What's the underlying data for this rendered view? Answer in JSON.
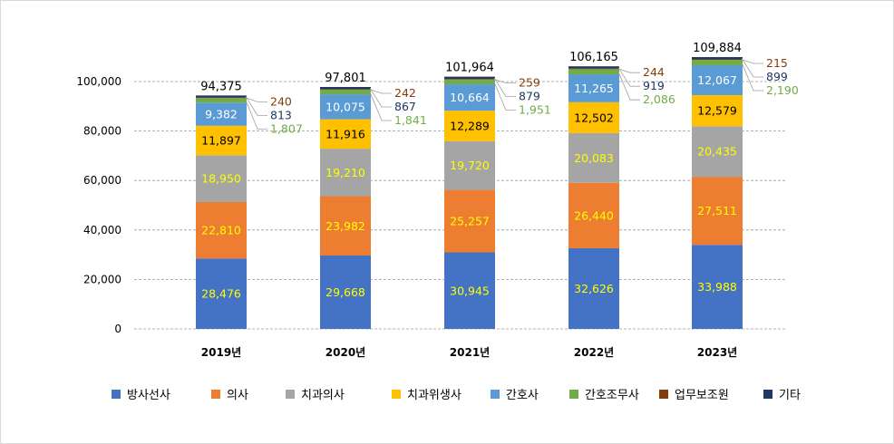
{
  "chart_data": {
    "type": "stacked-bar",
    "title": "",
    "categories": [
      "2019년",
      "2020년",
      "2021년",
      "2022년",
      "2023년"
    ],
    "ylim": [
      0,
      100000
    ],
    "yticks": [
      "0",
      "20,000",
      "40,000",
      "60,000",
      "80,000",
      "100,000"
    ],
    "ytick_values": [
      0,
      20000,
      40000,
      60000,
      80000,
      100000
    ],
    "grid": true,
    "legend_position": "bottom",
    "series": [
      {
        "name": "방사선사",
        "color": "#4472c4",
        "values": [
          28476,
          29668,
          30945,
          32626,
          33988
        ],
        "labels": [
          "28,476",
          "29,668",
          "30,945",
          "32,626",
          "33,988"
        ],
        "label_style": "inside-yellow"
      },
      {
        "name": "의사",
        "color": "#ed7d31",
        "values": [
          22810,
          23982,
          25257,
          26440,
          27511
        ],
        "labels": [
          "22,810",
          "23,982",
          "25,257",
          "26,440",
          "27,511"
        ],
        "label_style": "inside-yellow"
      },
      {
        "name": "치과의사",
        "color": "#a5a5a5",
        "values": [
          18950,
          19210,
          19720,
          20083,
          20435
        ],
        "labels": [
          "18,950",
          "19,210",
          "19,720",
          "20,083",
          "20,435"
        ],
        "label_style": "inside-yellow"
      },
      {
        "name": "치과위생사",
        "color": "#ffc000",
        "values": [
          11897,
          11916,
          12289,
          12502,
          12579
        ],
        "labels": [
          "11,897",
          "11,916",
          "12,289",
          "12,502",
          "12,579"
        ],
        "label_style": "inside-dark"
      },
      {
        "name": "간호사",
        "color": "#5b9bd5",
        "values": [
          9382,
          10075,
          10664,
          11265,
          12067
        ],
        "labels": [
          "9,382",
          "10,075",
          "10,664",
          "11,265",
          "12,067"
        ],
        "label_style": "inside-light"
      },
      {
        "name": "간호조무사",
        "color": "#70ad47",
        "values": [
          1807,
          1841,
          1951,
          2086,
          2190
        ],
        "labels": [
          "1,807",
          "1,841",
          "1,951",
          "2,086",
          "2,190"
        ],
        "label_style": "side",
        "label_color": "#70ad47"
      },
      {
        "name": "업무보조원",
        "color": "#843c0c",
        "values": [
          240,
          242,
          259,
          244,
          215
        ],
        "labels": [
          "240",
          "242",
          "259",
          "244",
          "215"
        ],
        "label_style": "side",
        "label_color": "#843c0c"
      },
      {
        "name": "기타",
        "color": "#203864",
        "values": [
          813,
          867,
          879,
          919,
          899
        ],
        "labels": [
          "813",
          "867",
          "879",
          "919",
          "899"
        ],
        "label_style": "side",
        "label_color": "#203864"
      }
    ],
    "totals": [
      "94,375",
      "97,801",
      "101,964",
      "106,165",
      "109,884"
    ]
  }
}
